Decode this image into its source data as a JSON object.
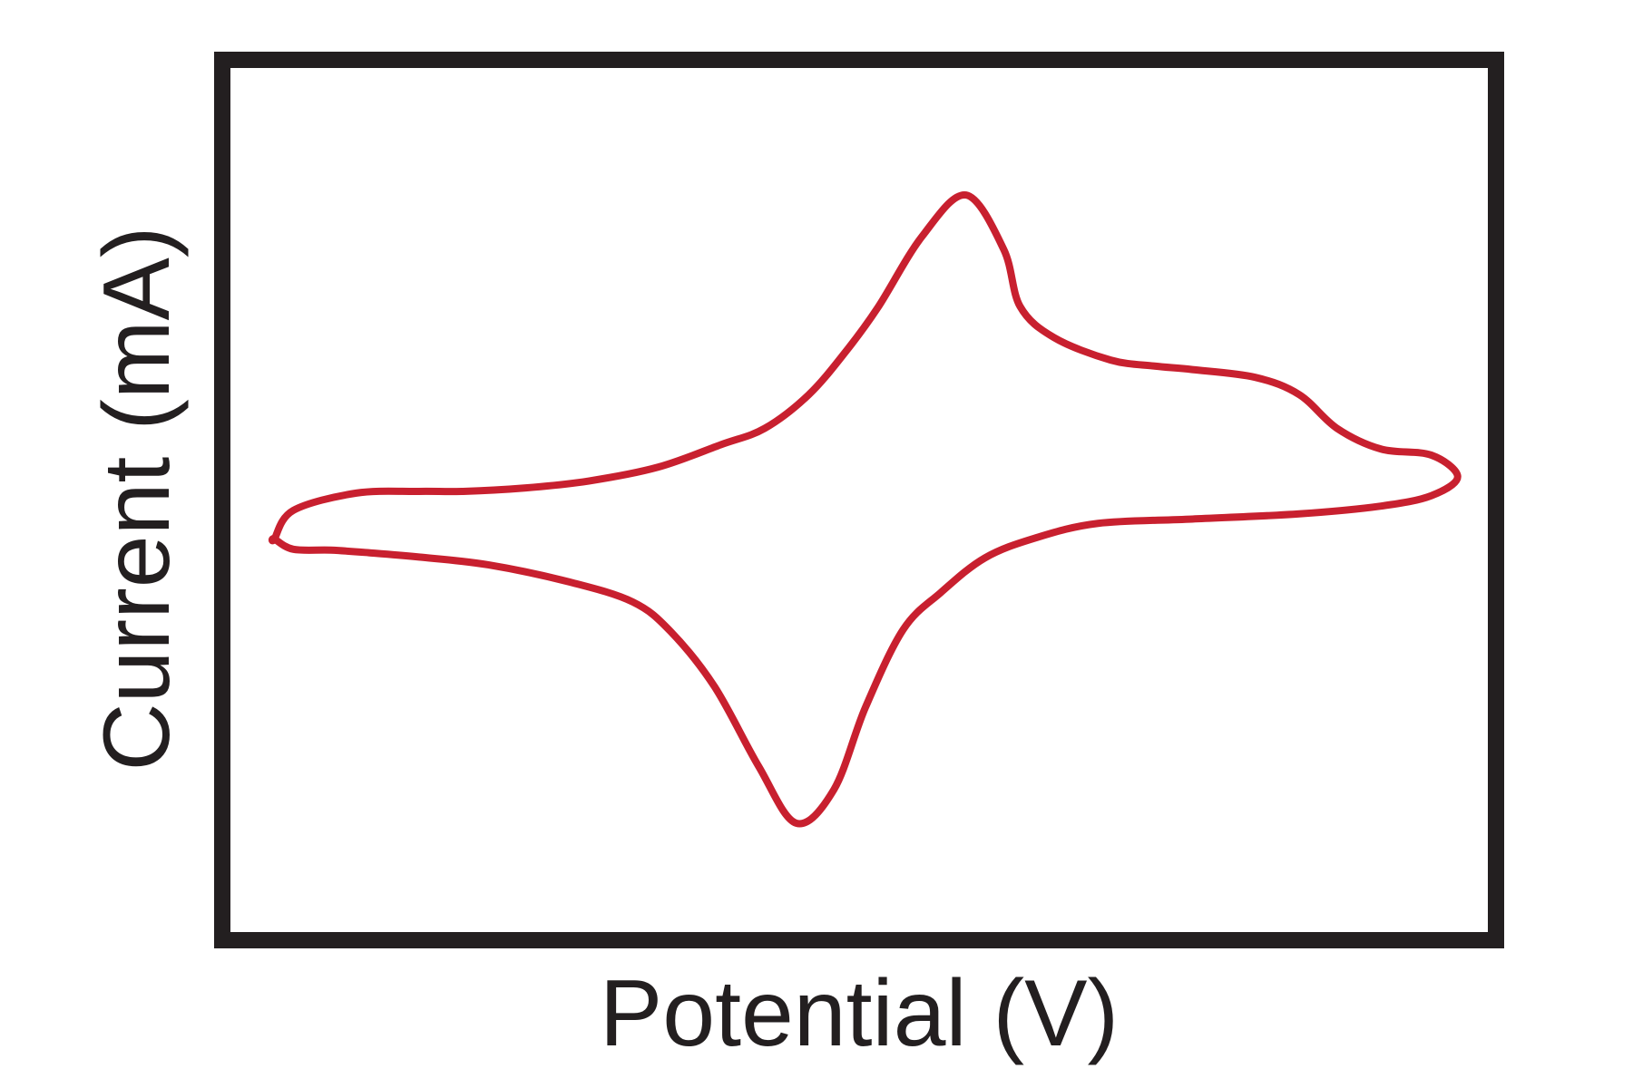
{
  "chart_data": {
    "type": "line",
    "title": "",
    "xlabel": "Potential (V)",
    "ylabel": "Current (mA)",
    "xlim": [
      0,
      100
    ],
    "ylim": [
      0,
      100
    ],
    "grid": false,
    "legend": "none",
    "x_ticks": [],
    "y_ticks": [],
    "series": [
      {
        "color": "#c8202f",
        "closed": true,
        "x": [
          3.5,
          5.0,
          10.0,
          15.0,
          18.5,
          23.5,
          28.5,
          34.0,
          39.0,
          42.5,
          46.0,
          49.0,
          51.5,
          55.0,
          58.5,
          61.5,
          62.8,
          65.5,
          70.0,
          73.5,
          76.5,
          81.5,
          85.0,
          88.0,
          91.5,
          95.5,
          97.6,
          95.5,
          91.5,
          85.0,
          76.5,
          69.0,
          64.0,
          60.0,
          56.5,
          53.5,
          50.5,
          48.0,
          45.0,
          42.0,
          38.5,
          35.0,
          32.0,
          27.0,
          20.5,
          15.0,
          11.0,
          8.0,
          5.0,
          3.5
        ],
        "y": [
          45.5,
          48.8,
          50.8,
          51.0,
          51.0,
          51.4,
          52.2,
          53.8,
          56.4,
          58.3,
          62.2,
          67.3,
          72.3,
          80.5,
          85.3,
          79.0,
          72.4,
          68.8,
          66.2,
          65.5,
          65.1,
          64.2,
          62.2,
          58.3,
          55.9,
          55.2,
          52.7,
          50.5,
          49.3,
          48.4,
          47.8,
          47.3,
          45.6,
          43.3,
          39.3,
          35.0,
          26.0,
          16.5,
          12.6,
          19.2,
          28.4,
          34.8,
          38.2,
          40.5,
          42.5,
          43.4,
          43.9,
          44.2,
          44.3,
          45.5
        ]
      }
    ]
  }
}
